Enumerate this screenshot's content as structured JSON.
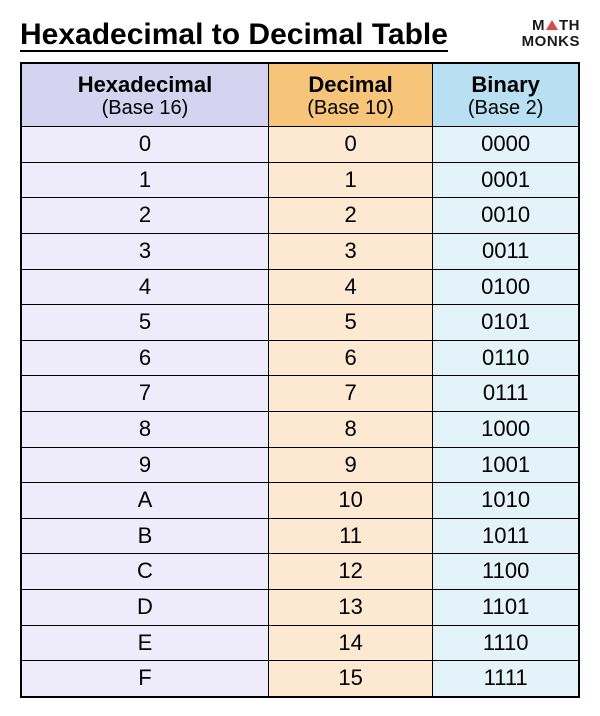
{
  "title": "Hexadecimal to Decimal Table",
  "logo": {
    "line1_pre": "M",
    "line1_post": "TH",
    "line2": "MONKS"
  },
  "table": {
    "columns": [
      {
        "label": "Hexadecimal",
        "sub": "(Base 16)",
        "header_bg": "#d6d3f0",
        "cell_bg": "#eeecfa"
      },
      {
        "label": "Decimal",
        "sub": "(Base 10)",
        "header_bg": "#f6c57a",
        "cell_bg": "#fde9d2"
      },
      {
        "label": "Binary",
        "sub": "(Base 2)",
        "header_bg": "#b8e0f2",
        "cell_bg": "#e4f3fa"
      }
    ],
    "rows": [
      [
        "0",
        "0",
        "0000"
      ],
      [
        "1",
        "1",
        "0001"
      ],
      [
        "2",
        "2",
        "0010"
      ],
      [
        "3",
        "3",
        "0011"
      ],
      [
        "4",
        "4",
        "0100"
      ],
      [
        "5",
        "5",
        "0101"
      ],
      [
        "6",
        "6",
        "0110"
      ],
      [
        "7",
        "7",
        "0111"
      ],
      [
        "8",
        "8",
        "1000"
      ],
      [
        "9",
        "9",
        "1001"
      ],
      [
        "A",
        "10",
        "1010"
      ],
      [
        "B",
        "11",
        "1011"
      ],
      [
        "C",
        "12",
        "1100"
      ],
      [
        "D",
        "13",
        "1101"
      ],
      [
        "E",
        "14",
        "1110"
      ],
      [
        "F",
        "15",
        "1111"
      ]
    ]
  },
  "style": {
    "title_fontsize": 30,
    "header_fontsize": 22,
    "cell_fontsize": 22,
    "border_color": "#000000",
    "background": "#ffffff"
  }
}
